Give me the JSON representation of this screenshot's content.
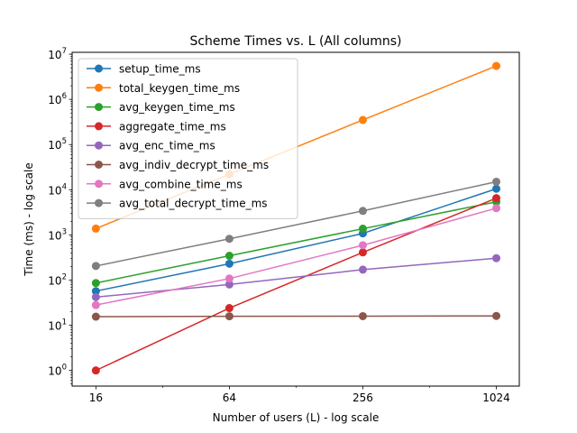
{
  "chart_data": {
    "type": "line",
    "title": "Scheme Times vs. L (All columns)",
    "xlabel": "Number of users (L) - log scale",
    "ylabel": "Time (ms) - log scale",
    "xscale": "log",
    "yscale": "log",
    "x": [
      16,
      64,
      256,
      1024
    ],
    "xtick_labels": [
      "16",
      "64",
      "256",
      "1024"
    ],
    "ytick_values": [
      1,
      10,
      100,
      1000,
      10000,
      100000,
      1000000,
      10000000
    ],
    "ytick_base": "10",
    "ytick_exponents": [
      "0",
      "1",
      "2",
      "3",
      "4",
      "5",
      "6",
      "7"
    ],
    "xlim": [
      12.5,
      1300
    ],
    "ylim": [
      0.45,
      11000000
    ],
    "grid": false,
    "legend_position": "upper-left",
    "series": [
      {
        "name": "setup_time_ms",
        "color": "#1f77b4",
        "values": [
          57,
          230,
          1080,
          10500
        ]
      },
      {
        "name": "total_keygen_time_ms",
        "color": "#ff7f0e",
        "values": [
          1380,
          22000,
          350000,
          5500000
        ]
      },
      {
        "name": "avg_keygen_time_ms",
        "color": "#2ca02c",
        "values": [
          86,
          345,
          1370,
          5400
        ]
      },
      {
        "name": "aggregate_time_ms",
        "color": "#d62728",
        "values": [
          1.0,
          24,
          410,
          6500
        ]
      },
      {
        "name": "avg_enc_time_ms",
        "color": "#9467bd",
        "values": [
          42,
          80,
          170,
          305
        ]
      },
      {
        "name": "avg_indiv_decrypt_time_ms",
        "color": "#8c564b",
        "values": [
          15.5,
          15.8,
          15.9,
          16.1
        ]
      },
      {
        "name": "avg_combine_time_ms",
        "color": "#e377c2",
        "values": [
          28,
          108,
          590,
          3900
        ]
      },
      {
        "name": "avg_total_decrypt_time_ms",
        "color": "#7f7f7f",
        "values": [
          205,
          820,
          3400,
          15000
        ]
      }
    ]
  }
}
